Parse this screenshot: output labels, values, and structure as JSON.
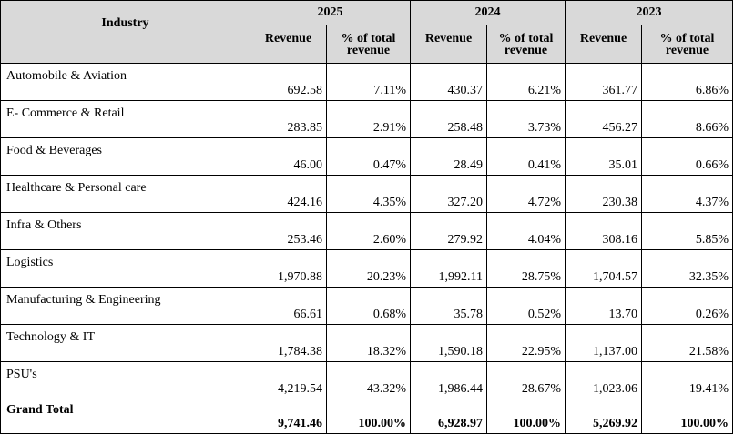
{
  "table": {
    "industry_header": "Industry",
    "years": [
      "2025",
      "2024",
      "2023"
    ],
    "sub_headers": {
      "revenue": "Revenue",
      "pct": "% of total revenue"
    },
    "rows": [
      {
        "industry": "Automobile & Aviation",
        "values": [
          "692.58",
          "7.11%",
          "430.37",
          "6.21%",
          "361.77",
          "6.86%"
        ]
      },
      {
        "industry": "E- Commerce & Retail",
        "values": [
          "283.85",
          "2.91%",
          "258.48",
          "3.73%",
          "456.27",
          "8.66%"
        ]
      },
      {
        "industry": "Food & Beverages",
        "values": [
          "46.00",
          "0.47%",
          "28.49",
          "0.41%",
          "35.01",
          "0.66%"
        ]
      },
      {
        "industry": "Healthcare & Personal care",
        "values": [
          "424.16",
          "4.35%",
          "327.20",
          "4.72%",
          "230.38",
          "4.37%"
        ]
      },
      {
        "industry": "Infra & Others",
        "values": [
          "253.46",
          "2.60%",
          "279.92",
          "4.04%",
          "308.16",
          "5.85%"
        ]
      },
      {
        "industry": "Logistics",
        "values": [
          "1,970.88",
          "20.23%",
          "1,992.11",
          "28.75%",
          "1,704.57",
          "32.35%"
        ]
      },
      {
        "industry": "Manufacturing & Engineering",
        "values": [
          "66.61",
          "0.68%",
          "35.78",
          "0.52%",
          "13.70",
          "0.26%"
        ]
      },
      {
        "industry": "Technology & IT",
        "values": [
          "1,784.38",
          "18.32%",
          "1,590.18",
          "22.95%",
          "1,137.00",
          "21.58%"
        ]
      },
      {
        "industry": "PSU's",
        "values": [
          "4,219.54",
          "43.32%",
          "1,986.44",
          "28.67%",
          "1,023.06",
          "19.41%"
        ]
      }
    ],
    "total": {
      "label": "Grand Total",
      "values": [
        "9,741.46",
        "100.00%",
        "6,928.97",
        "100.00%",
        "5,269.92",
        "100.00%"
      ]
    }
  }
}
